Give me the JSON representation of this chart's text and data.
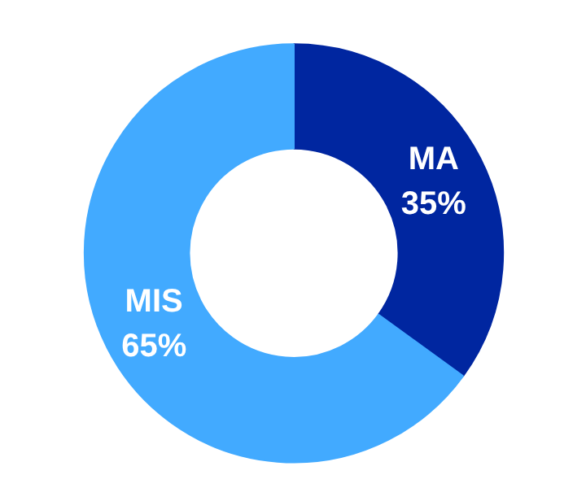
{
  "chart_data": {
    "type": "donut",
    "categories": [
      "MA",
      "MIS"
    ],
    "values": [
      35,
      65
    ],
    "colors": [
      "#0026a0",
      "#42aaff"
    ],
    "value_labels": [
      "35%",
      "65%"
    ]
  }
}
